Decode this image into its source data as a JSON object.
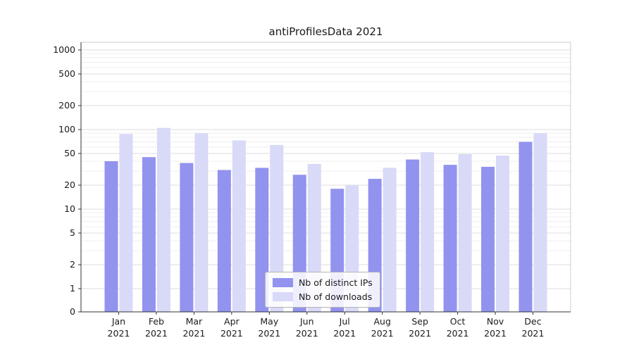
{
  "chart_data": {
    "type": "bar",
    "title": "antiProfilesData 2021",
    "categories": [
      "Jan",
      "Feb",
      "Mar",
      "Apr",
      "May",
      "Jun",
      "Jul",
      "Aug",
      "Sep",
      "Oct",
      "Nov",
      "Dec"
    ],
    "year_label": "2021",
    "series": [
      {
        "name": "Nb of distinct IPs",
        "color": "#9293ee",
        "values": [
          40,
          45,
          38,
          31,
          33,
          27,
          18,
          24,
          42,
          36,
          34,
          70
        ]
      },
      {
        "name": "Nb of downloads",
        "color": "#d9d9f8",
        "values": [
          88,
          105,
          90,
          73,
          64,
          37,
          20,
          33,
          52,
          49,
          47,
          90
        ]
      }
    ],
    "yticks": [
      0,
      1,
      2,
      5,
      10,
      20,
      50,
      100,
      200,
      500,
      1000
    ],
    "yscale": "symlog",
    "ylim": [
      0,
      1500
    ],
    "grid": true,
    "legend_position": "lower center",
    "colors": {
      "grid_major": "#dcdcdc",
      "grid_minor": "#efefef",
      "spine_dark": "#333333",
      "spine_light": "#cccccc",
      "tick_text": "#1a1a1a"
    }
  }
}
